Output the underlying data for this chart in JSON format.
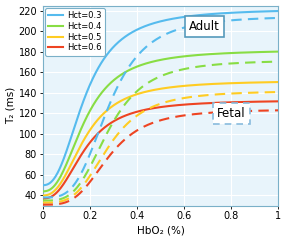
{
  "xlabel": "HbO₂ (%)",
  "ylabel": "T₂ (ms)",
  "xlim": [
    0,
    1
  ],
  "ylim": [
    30,
    225
  ],
  "xticks": [
    0,
    0.2,
    0.4,
    0.6,
    0.8,
    1.0
  ],
  "xtick_labels": [
    "0",
    "0.2",
    "0.4",
    "0.6",
    "0.8",
    "1"
  ],
  "yticks": [
    40,
    60,
    80,
    100,
    120,
    140,
    160,
    180,
    200,
    220
  ],
  "legend_labels": [
    "Hct=0.3",
    "Hct=0.4",
    "Hct=0.5",
    "Hct=0.6"
  ],
  "colors": [
    "#55bbee",
    "#88dd44",
    "#ffcc22",
    "#ee4422"
  ],
  "adult_label": "Adult",
  "fetal_label": "Fetal",
  "background_color": "#e8f4fb",
  "grid_color": "#ffffff",
  "spine_color": "#7ab0c8",
  "adult_box_color": "#5599bb",
  "fetal_box_color": "#88bbdd",
  "adult_curves": [
    {
      "y0": 50,
      "y1": 222,
      "n": 2.5,
      "c": 0.18
    },
    {
      "y0": 44,
      "y1": 182,
      "n": 2.5,
      "c": 0.18
    },
    {
      "y0": 40,
      "y1": 152,
      "n": 2.5,
      "c": 0.18
    },
    {
      "y0": 37,
      "y1": 133,
      "n": 2.5,
      "c": 0.18
    }
  ],
  "fetal_curves": [
    {
      "y0": 38,
      "y1": 215,
      "n": 3.5,
      "c": 0.28
    },
    {
      "y0": 35,
      "y1": 172,
      "n": 3.5,
      "c": 0.28
    },
    {
      "y0": 33,
      "y1": 142,
      "n": 3.5,
      "c": 0.28
    },
    {
      "y0": 31,
      "y1": 124,
      "n": 3.5,
      "c": 0.28
    }
  ]
}
